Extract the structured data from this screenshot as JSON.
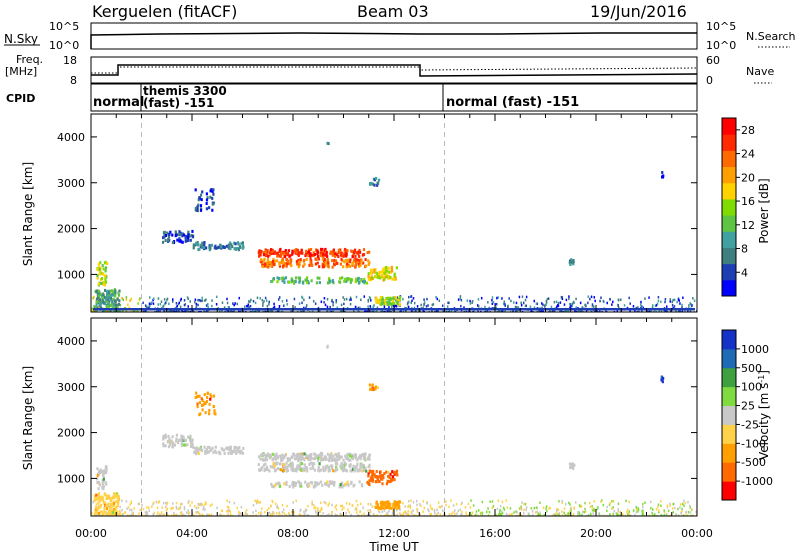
{
  "header": {
    "station": "Kerguelen (fitACF)",
    "beam": "Beam 03",
    "date": "19/Jun/2016"
  },
  "nsky_panel": {
    "left_label": "N.Sky",
    "left_ticks": [
      "10^5",
      "10^0"
    ],
    "right_label": "N.Search",
    "right_ticks": [
      "10^5",
      "10^0"
    ]
  },
  "freq_panel": {
    "left_label_1": "Freq.",
    "left_label_2": "[MHz]",
    "left_ticks": [
      "18",
      "8"
    ],
    "right_label": "Nave",
    "right_ticks": [
      "60",
      "0"
    ]
  },
  "cpid_panel": {
    "label": "CPID",
    "segments": [
      "normal",
      "themis 3300",
      "(fast) -151",
      "normal (fast) -151"
    ]
  },
  "xaxis": {
    "ticks": [
      "00:00",
      "04:00",
      "08:00",
      "12:00",
      "16:00",
      "20:00",
      "00:00"
    ],
    "label": "Time UT"
  },
  "colors": {
    "power": [
      "#0000ff",
      "#1e3fb4",
      "#3f7f7f",
      "#41a0a0",
      "#5ec444",
      "#7fdb00",
      "#ffd200",
      "#ffa000",
      "#ff6a00",
      "#ff2a00",
      "#ff0000"
    ],
    "velocity": [
      "#ff0000",
      "#ff6a00",
      "#ffa000",
      "#ffd24a",
      "#c8c8c8",
      "#7fdb3f",
      "#3fa03f",
      "#1e6ab4",
      "#1432c8"
    ]
  },
  "chart_data": [
    {
      "type": "heatmap",
      "ylabel": "Slant Range [km]",
      "yticks": [
        "1000",
        "2000",
        "3000",
        "4000"
      ],
      "ylim": [
        180,
        4500
      ],
      "xlim": [
        0,
        24
      ],
      "colorbar": {
        "label": "Power [dB]",
        "ticks": [
          "4",
          "8",
          "12",
          "16",
          "20",
          "24",
          "28"
        ],
        "range": [
          0,
          30
        ]
      }
    },
    {
      "type": "heatmap",
      "ylabel": "Slant Range [km]",
      "yticks": [
        "1000",
        "2000",
        "3000",
        "4000"
      ],
      "ylim": [
        180,
        4500
      ],
      "xlim": [
        0,
        24
      ],
      "colorbar": {
        "label": "Velocity [m s^-1]",
        "ticks": [
          "-1000",
          "-500",
          "-100",
          "-25",
          "25",
          "100",
          "500",
          "1000"
        ]
      }
    }
  ]
}
